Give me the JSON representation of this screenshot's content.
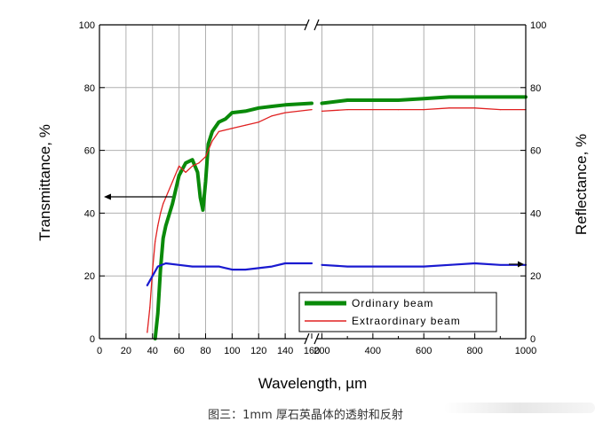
{
  "caption": "图三：1mm 厚石英晶体的透射和反射",
  "colors": {
    "ordinary": "#0a8a0a",
    "extraordinary": "#e02020",
    "reflectance": "#1a1ad0",
    "grid": "#b0b0b0"
  },
  "chart_data": {
    "type": "line",
    "xlabel": "Wavelength, µm",
    "ylabel_left": "Transmittance, %",
    "ylabel_right": "Reflectance, %",
    "ylim": [
      0,
      100
    ],
    "y_ticks": [
      "0",
      "20",
      "40",
      "60",
      "80",
      "100"
    ],
    "x_broken_axis": true,
    "x_segments": [
      {
        "xlim": [
          0,
          160
        ],
        "ticks": [
          "0",
          "20",
          "40",
          "60",
          "80",
          "100",
          "120",
          "140",
          "160"
        ]
      },
      {
        "xlim": [
          160,
          1000
        ],
        "ticks": [
          "200",
          "400",
          "600",
          "800",
          "1000"
        ]
      }
    ],
    "grid": true,
    "legend": {
      "position": "bottom-right",
      "entries": [
        "Ordinary beam",
        "Extraordinary beam"
      ]
    },
    "annotations": [
      {
        "type": "arrow",
        "direction": "left",
        "refers_to": "left-axis",
        "y": 45
      },
      {
        "type": "arrow",
        "direction": "right",
        "refers_to": "right-axis",
        "y": 24
      }
    ],
    "series": [
      {
        "name": "Ordinary beam",
        "axis": "left",
        "x": [
          42,
          44,
          46,
          48,
          50,
          55,
          60,
          65,
          70,
          74,
          76,
          78,
          80,
          82,
          85,
          90,
          95,
          100,
          110,
          120,
          130,
          140,
          160,
          200,
          300,
          400,
          500,
          600,
          700,
          800,
          900,
          1000
        ],
        "y": [
          0,
          8,
          22,
          32,
          36,
          43,
          52,
          56,
          57,
          53,
          45,
          41,
          50,
          62,
          66,
          69,
          70,
          72,
          72.5,
          73.5,
          74,
          74.5,
          75,
          75,
          76,
          76,
          76,
          76.5,
          77,
          77,
          77,
          77
        ]
      },
      {
        "name": "Extraordinary beam",
        "axis": "left",
        "x": [
          36,
          38,
          40,
          42,
          44,
          46,
          48,
          50,
          55,
          60,
          65,
          70,
          75,
          80,
          85,
          90,
          100,
          110,
          120,
          130,
          140,
          160,
          200,
          300,
          400,
          500,
          600,
          700,
          800,
          900,
          1000
        ],
        "y": [
          2,
          10,
          22,
          31,
          36,
          40,
          43,
          45,
          50,
          55,
          53,
          55,
          56,
          58,
          63,
          66,
          67,
          68,
          69,
          71,
          72,
          73,
          72.5,
          73,
          73,
          73,
          73,
          73.5,
          73.5,
          73,
          73
        ]
      },
      {
        "name": "",
        "axis": "right",
        "x": [
          36,
          40,
          44,
          50,
          60,
          70,
          80,
          90,
          100,
          110,
          120,
          130,
          140,
          160,
          200,
          300,
          400,
          500,
          600,
          700,
          800,
          900,
          1000
        ],
        "y": [
          17,
          20,
          23,
          24,
          23.5,
          23,
          23,
          23,
          22,
          22,
          22.5,
          23,
          24,
          24,
          23.5,
          23,
          23,
          23,
          23,
          23.5,
          24,
          23.5,
          23.5
        ]
      }
    ]
  }
}
